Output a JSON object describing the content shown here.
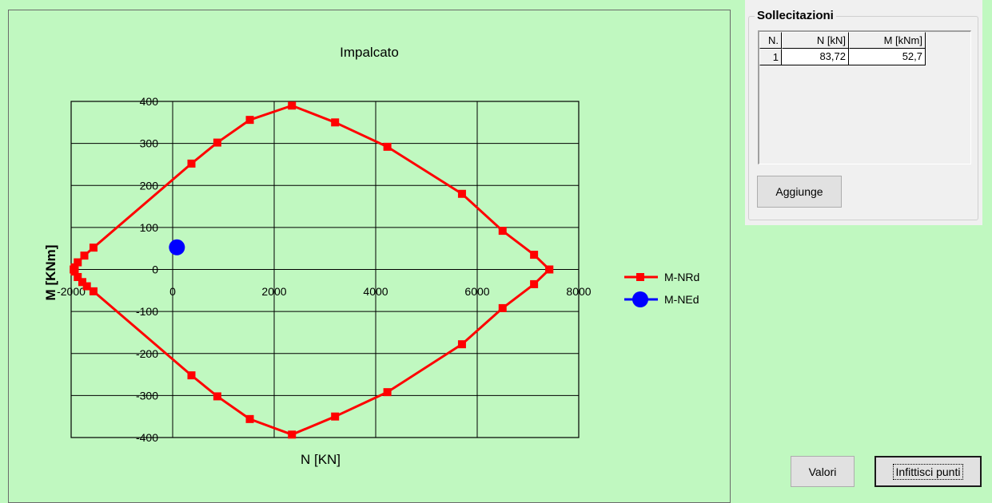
{
  "chart_data": {
    "type": "line",
    "title": "Impalcato",
    "xlabel": "N [KN]",
    "ylabel": "M [KNm]",
    "xlim": [
      -2000,
      8000
    ],
    "ylim": [
      -400,
      400
    ],
    "x_ticks": [
      -2000,
      0,
      2000,
      4000,
      6000,
      8000
    ],
    "y_ticks": [
      -400,
      -300,
      -200,
      -100,
      0,
      100,
      200,
      300,
      400
    ],
    "grid": true,
    "legend_position": "right",
    "series": [
      {
        "name": "M-NRd",
        "color": "#ff0000",
        "marker": "square",
        "line": true,
        "points": [
          [
            7420,
            0
          ],
          [
            7120,
            35
          ],
          [
            6500,
            92
          ],
          [
            5700,
            180
          ],
          [
            4230,
            292
          ],
          [
            3200,
            350
          ],
          [
            2350,
            390
          ],
          [
            1520,
            356
          ],
          [
            880,
            302
          ],
          [
            370,
            252
          ],
          [
            -1560,
            52
          ],
          [
            -1740,
            33
          ],
          [
            -1870,
            17
          ],
          [
            -1930,
            5
          ],
          [
            -1950,
            0
          ],
          [
            -1930,
            -5
          ],
          [
            -1870,
            -18
          ],
          [
            -1780,
            -30
          ],
          [
            -1690,
            -40
          ],
          [
            -1560,
            -52
          ],
          [
            370,
            -252
          ],
          [
            880,
            -302
          ],
          [
            1520,
            -356
          ],
          [
            2350,
            -393
          ],
          [
            3200,
            -350
          ],
          [
            4230,
            -292
          ],
          [
            5700,
            -178
          ],
          [
            6500,
            -92
          ],
          [
            7120,
            -35
          ],
          [
            7420,
            0
          ]
        ]
      },
      {
        "name": "M-NEd",
        "color": "#0000ff",
        "marker": "circle",
        "line": false,
        "points": [
          [
            83.72,
            52.7
          ]
        ]
      }
    ]
  },
  "sollecitazioni": {
    "title": "Sollecitazioni",
    "columns": [
      "N.",
      "N [kN]",
      "M [kNm]"
    ],
    "rows": [
      [
        "1",
        "83,72",
        "52,7"
      ]
    ]
  },
  "buttons": {
    "aggiunge": "Aggiunge",
    "valori": "Valori",
    "infittisci": "Infittisci punti"
  }
}
